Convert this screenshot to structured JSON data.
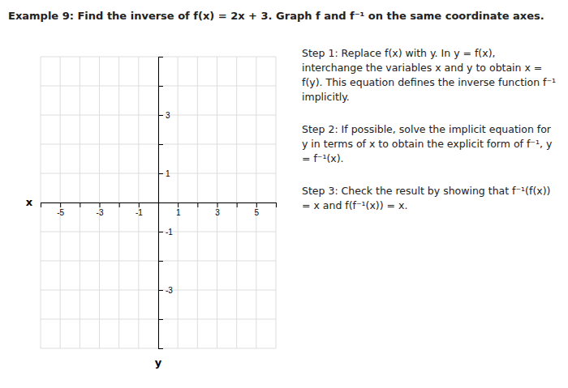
{
  "chart_data": {
    "type": "line",
    "title": "Example 9: Find the inverse of f(x) = 2x + 3. Graph f and f⁻¹ on the same coordinate axes.",
    "x_label": "x",
    "y_label": "y",
    "xlim": [
      -6,
      6
    ],
    "ylim": [
      -5,
      5
    ],
    "xticks": [
      {
        "value": -6,
        "label": null
      },
      -5,
      {
        "value": -4,
        "label": null
      },
      -3,
      {
        "value": -2,
        "label": null
      },
      -1,
      {
        "value": 0,
        "label": null
      },
      1,
      {
        "value": 2,
        "label": null
      },
      3,
      {
        "value": 4,
        "label": null
      },
      5,
      {
        "value": 6,
        "label": null
      }
    ],
    "yticks": [
      {
        "value": -5,
        "label": null
      },
      {
        "value": -4,
        "label": null
      },
      -3,
      {
        "value": -2,
        "label": null
      },
      -1,
      {
        "value": 0,
        "label": null
      },
      1,
      {
        "value": 2,
        "label": null
      },
      3,
      {
        "value": 4,
        "label": null
      },
      {
        "value": 5,
        "label": null
      }
    ],
    "grid": true,
    "annotations": [
      "Step 1: Replace f(x) with y. In y = f(x), interchange the variables x and y to obtain x = f(y). This equation defines the inverse function f⁻¹ implicitly.",
      "Step 2: If possible, solve the implicit equation for y in terms of x to obtain the explicit form of f⁻¹, y = f⁻¹(x).",
      "Step 3: Check the result by showing that f⁻¹(f(x)) = x and f(f⁻¹(x)) = x."
    ]
  }
}
